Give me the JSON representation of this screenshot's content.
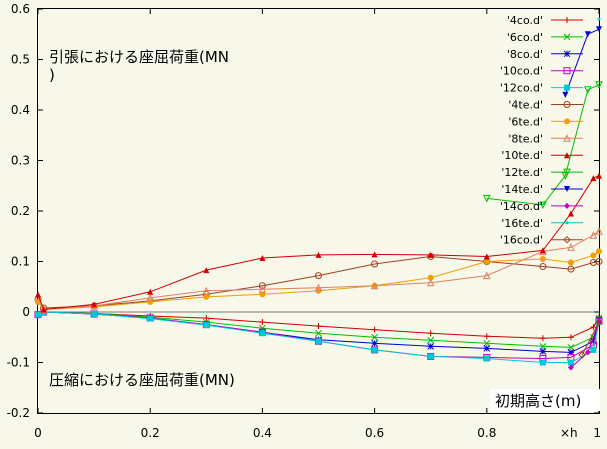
{
  "chart_data": {
    "type": "line",
    "title": "",
    "xlabel": "初期高さ(m)",
    "ylabel": "",
    "xlim": [
      0,
      1.0
    ],
    "ylim": [
      -0.2,
      0.6
    ],
    "grid": false,
    "legend_position": "top-right",
    "x_ticks": [
      "0",
      "0.2",
      "0.4",
      "0.6",
      "0.8",
      "1"
    ],
    "y_ticks": [
      "-0.2",
      "-0.1",
      "0",
      "0.1",
      "0.2",
      "0.3",
      "0.4",
      "0.5",
      "0.6"
    ],
    "x_scale_marker": "×h",
    "annotations": {
      "tension_line1": "引張における座屈荷重(MN",
      "tension_line2": ")",
      "compression": "圧縮における座屈荷重(MN)"
    },
    "series": [
      {
        "name": "'4co.d'",
        "color": "#d00000",
        "marker": "+",
        "x": [
          0,
          0.01,
          0.1,
          0.2,
          0.3,
          0.4,
          0.5,
          0.6,
          0.7,
          0.8,
          0.9,
          0.95,
          0.99,
          1.0
        ],
        "y": [
          -0.005,
          0.0,
          -0.003,
          -0.008,
          -0.012,
          -0.02,
          -0.028,
          -0.035,
          -0.042,
          -0.048,
          -0.052,
          -0.05,
          -0.03,
          -0.01
        ]
      },
      {
        "name": "'6co.d'",
        "color": "#00c000",
        "marker": "x",
        "x": [
          0,
          0.01,
          0.1,
          0.2,
          0.3,
          0.4,
          0.5,
          0.6,
          0.7,
          0.8,
          0.9,
          0.95,
          0.99,
          1.0
        ],
        "y": [
          -0.005,
          0.0,
          -0.003,
          -0.01,
          -0.02,
          -0.032,
          -0.042,
          -0.05,
          -0.056,
          -0.062,
          -0.068,
          -0.07,
          -0.05,
          -0.012
        ]
      },
      {
        "name": "'8co.d'",
        "color": "#0000d0",
        "marker": "*",
        "x": [
          0,
          0.01,
          0.1,
          0.2,
          0.3,
          0.4,
          0.5,
          0.6,
          0.7,
          0.8,
          0.9,
          0.95,
          0.99,
          1.0
        ],
        "y": [
          -0.005,
          0.0,
          -0.004,
          -0.012,
          -0.025,
          -0.04,
          -0.055,
          -0.062,
          -0.068,
          -0.072,
          -0.078,
          -0.08,
          -0.058,
          -0.015
        ]
      },
      {
        "name": "'10co.d'",
        "color": "#c000c0",
        "marker": "square",
        "x": [
          0,
          0.01,
          0.1,
          0.2,
          0.3,
          0.4,
          0.5,
          0.6,
          0.7,
          0.8,
          0.9,
          0.95,
          0.99,
          1.0
        ],
        "y": [
          -0.005,
          0.0,
          -0.004,
          -0.012,
          -0.025,
          -0.04,
          -0.058,
          -0.075,
          -0.088,
          -0.09,
          -0.092,
          -0.09,
          -0.065,
          -0.018
        ]
      },
      {
        "name": "'12co.d'",
        "color": "#00c8d8",
        "marker": "filled-square",
        "x": [
          0,
          0.01,
          0.1,
          0.2,
          0.3,
          0.4,
          0.5,
          0.6,
          0.7,
          0.8,
          0.9,
          0.95,
          0.99,
          1.0
        ],
        "y": [
          -0.005,
          0.0,
          -0.004,
          -0.013,
          -0.026,
          -0.042,
          -0.058,
          -0.075,
          -0.088,
          -0.092,
          -0.1,
          -0.1,
          -0.075,
          -0.02
        ]
      },
      {
        "name": "'4te.d'",
        "color": "#a04020",
        "marker": "circle",
        "x": [
          0,
          0.01,
          0.1,
          0.2,
          0.3,
          0.4,
          0.5,
          0.6,
          0.7,
          0.8,
          0.9,
          0.95,
          0.99,
          1.0
        ],
        "y": [
          0.025,
          0.008,
          0.012,
          0.022,
          0.035,
          0.052,
          0.072,
          0.095,
          0.11,
          0.1,
          0.09,
          0.085,
          0.098,
          0.1
        ]
      },
      {
        "name": "'6te.d'",
        "color": "#f0a000",
        "marker": "filled-circle",
        "x": [
          0,
          0.01,
          0.1,
          0.2,
          0.3,
          0.4,
          0.5,
          0.6,
          0.7,
          0.8,
          0.9,
          0.95,
          0.99,
          1.0
        ],
        "y": [
          0.02,
          0.005,
          0.01,
          0.02,
          0.03,
          0.035,
          0.042,
          0.052,
          0.068,
          0.1,
          0.105,
          0.098,
          0.112,
          0.12
        ]
      },
      {
        "name": "'8te.d'",
        "color": "#e08060",
        "marker": "triangle",
        "x": [
          0,
          0.01,
          0.1,
          0.2,
          0.3,
          0.4,
          0.5,
          0.6,
          0.7,
          0.8,
          0.9,
          0.95,
          0.99,
          1.0
        ],
        "y": [
          0.03,
          0.005,
          0.012,
          0.028,
          0.042,
          0.045,
          0.048,
          0.052,
          0.058,
          0.072,
          0.12,
          0.128,
          0.152,
          0.16
        ]
      },
      {
        "name": "'10te.d'",
        "color": "#d00000",
        "marker": "filled-triangle",
        "x": [
          0,
          0.01,
          0.1,
          0.2,
          0.3,
          0.4,
          0.5,
          0.6,
          0.7,
          0.8,
          0.9,
          0.95,
          0.99,
          1.0
        ],
        "y": [
          0.035,
          0.005,
          0.015,
          0.04,
          0.083,
          0.107,
          0.113,
          0.114,
          0.113,
          0.11,
          0.122,
          0.195,
          0.265,
          0.27
        ]
      },
      {
        "name": "'12te.d'",
        "color": "#00c000",
        "marker": "inv-triangle",
        "x": [
          0.8,
          0.9,
          0.94,
          0.98,
          1.0
        ],
        "y": [
          0.225,
          0.212,
          0.27,
          0.44,
          0.45
        ]
      },
      {
        "name": "'14te.d'",
        "color": "#0000d0",
        "marker": "filled-inv-triangle",
        "x": [
          0.94,
          0.98,
          1.0
        ],
        "y": [
          0.43,
          0.55,
          0.56
        ]
      },
      {
        "name": "'14co.d'",
        "color": "#c000c0",
        "marker": "filled-diamond",
        "x": [
          0.95,
          0.98,
          1.0
        ],
        "y": [
          -0.11,
          -0.08,
          -0.02
        ]
      },
      {
        "name": "'16te.d'",
        "color": "#00c8d8",
        "marker": "dot",
        "x": [
          1.0
        ],
        "y": [
          0.58
        ]
      },
      {
        "name": "'16co.d'",
        "color": "#a04020",
        "marker": "diamond",
        "x": [
          0.97,
          1.0
        ],
        "y": [
          -0.085,
          -0.02
        ]
      }
    ]
  }
}
